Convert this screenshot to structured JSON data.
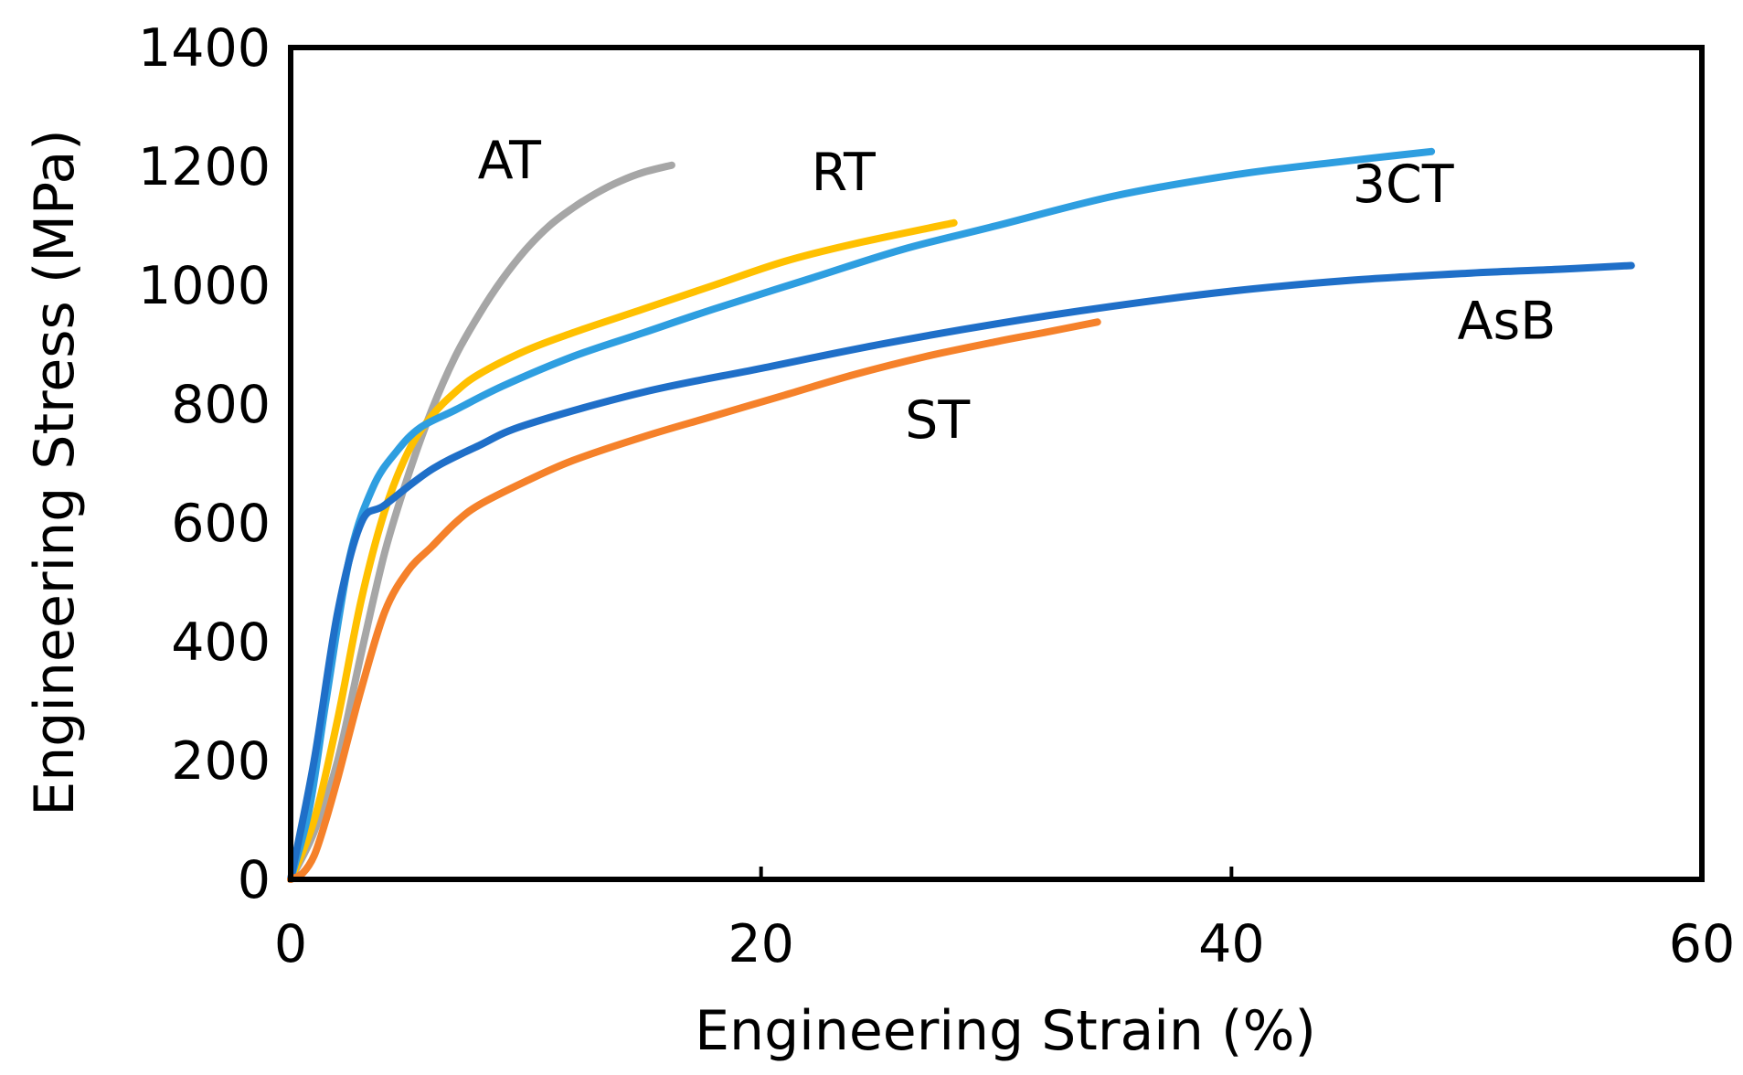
{
  "chart_data": {
    "type": "line",
    "title": "",
    "xlabel": "Engineering Strain (%)",
    "ylabel": "Engineering Stress (MPa)",
    "xlim": [
      0,
      60
    ],
    "ylim": [
      0,
      1400
    ],
    "xticks": [
      0,
      20,
      40,
      60
    ],
    "yticks": [
      0,
      200,
      400,
      600,
      800,
      1000,
      1200,
      1400
    ],
    "grid": false,
    "legend": "none (series labeled inline)",
    "series": [
      {
        "name": "AT",
        "color": "#a6a6a6",
        "label_at": [
          9.3,
          1180
        ],
        "points": [
          [
            0,
            0
          ],
          [
            1,
            80
          ],
          [
            2,
            200
          ],
          [
            3,
            380
          ],
          [
            4,
            550
          ],
          [
            5,
            680
          ],
          [
            6,
            790
          ],
          [
            7,
            880
          ],
          [
            8,
            950
          ],
          [
            9,
            1010
          ],
          [
            10,
            1060
          ],
          [
            11,
            1100
          ],
          [
            12,
            1130
          ],
          [
            13,
            1155
          ],
          [
            14,
            1175
          ],
          [
            15,
            1190
          ],
          [
            16.2,
            1202
          ]
        ]
      },
      {
        "name": "RT",
        "color": "#ffc000",
        "label_at": [
          23.5,
          1160
        ],
        "points": [
          [
            0,
            0
          ],
          [
            1,
            100
          ],
          [
            2,
            270
          ],
          [
            3,
            470
          ],
          [
            4,
            620
          ],
          [
            5,
            720
          ],
          [
            6,
            780
          ],
          [
            7,
            820
          ],
          [
            8,
            850
          ],
          [
            10,
            890
          ],
          [
            12,
            920
          ],
          [
            15,
            960
          ],
          [
            18,
            1000
          ],
          [
            21,
            1040
          ],
          [
            24,
            1070
          ],
          [
            28.2,
            1105
          ]
        ]
      },
      {
        "name": "3CT",
        "color": "#2e9ee0",
        "label_at": [
          47.3,
          1140
        ],
        "points": [
          [
            0,
            0
          ],
          [
            0.8,
            120
          ],
          [
            1.5,
            300
          ],
          [
            2.5,
            540
          ],
          [
            3.5,
            660
          ],
          [
            4.5,
            720
          ],
          [
            5.5,
            760
          ],
          [
            7,
            790
          ],
          [
            9,
            830
          ],
          [
            12,
            880
          ],
          [
            15,
            920
          ],
          [
            18,
            960
          ],
          [
            22,
            1010
          ],
          [
            26,
            1060
          ],
          [
            30,
            1100
          ],
          [
            35,
            1150
          ],
          [
            40,
            1185
          ],
          [
            44,
            1205
          ],
          [
            48.5,
            1225
          ]
        ]
      },
      {
        "name": "AsB",
        "color": "#1f6fc8",
        "label_at": [
          51.7,
          910
        ],
        "points": [
          [
            0,
            0
          ],
          [
            1,
            200
          ],
          [
            2,
            450
          ],
          [
            3,
            600
          ],
          [
            4,
            630
          ],
          [
            6,
            690
          ],
          [
            8,
            730
          ],
          [
            10,
            765
          ],
          [
            15,
            820
          ],
          [
            20,
            860
          ],
          [
            25,
            900
          ],
          [
            30,
            935
          ],
          [
            35,
            965
          ],
          [
            40,
            990
          ],
          [
            45,
            1008
          ],
          [
            50,
            1020
          ],
          [
            54,
            1027
          ],
          [
            57,
            1033
          ]
        ]
      },
      {
        "name": "ST",
        "color": "#f5812a",
        "label_at": [
          27.5,
          743
        ],
        "points": [
          [
            0,
            0
          ],
          [
            0.5,
            10
          ],
          [
            1,
            40
          ],
          [
            1.5,
            100
          ],
          [
            2,
            170
          ],
          [
            3,
            320
          ],
          [
            4,
            450
          ],
          [
            5,
            520
          ],
          [
            6,
            560
          ],
          [
            7,
            600
          ],
          [
            8,
            630
          ],
          [
            10,
            670
          ],
          [
            12,
            705
          ],
          [
            15,
            745
          ],
          [
            18,
            780
          ],
          [
            21,
            815
          ],
          [
            24,
            850
          ],
          [
            27,
            880
          ],
          [
            30,
            905
          ],
          [
            32,
            920
          ],
          [
            34.3,
            938
          ]
        ]
      }
    ]
  }
}
